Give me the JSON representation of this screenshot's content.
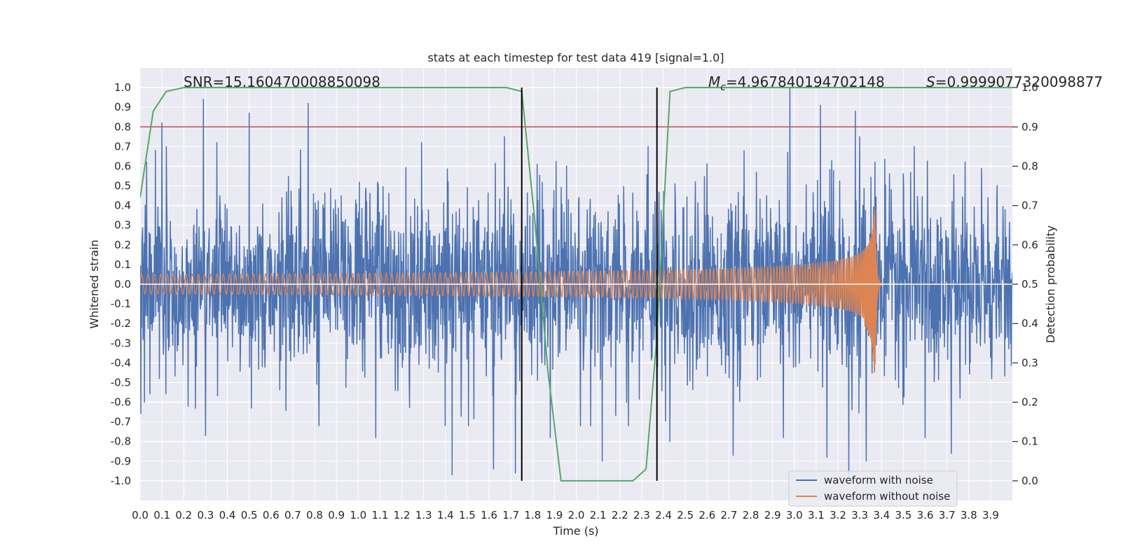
{
  "chart_data": {
    "type": "line",
    "title": "stats at each timestep for test data 419 [signal=1.0]",
    "xlabel": "Time (s)",
    "ylabel": "Whitened strain",
    "y2label": "Detection probability",
    "xlim": [
      0.0,
      4.0
    ],
    "ylim": [
      -1.1,
      1.1
    ],
    "y2lim": [
      -0.05,
      1.05
    ],
    "x_ticks": [
      "0.0",
      "0.1",
      "0.2",
      "0.3",
      "0.4",
      "0.5",
      "0.6",
      "0.7",
      "0.8",
      "0.9",
      "1.0",
      "1.1",
      "1.2",
      "1.3",
      "1.4",
      "1.5",
      "1.6",
      "1.7",
      "1.8",
      "1.9",
      "2.0",
      "2.1",
      "2.2",
      "2.3",
      "2.4",
      "2.5",
      "2.6",
      "2.7",
      "2.8",
      "2.9",
      "3.0",
      "3.1",
      "3.2",
      "3.3",
      "3.4",
      "3.5",
      "3.6",
      "3.7",
      "3.8",
      "3.9"
    ],
    "y_ticks": [
      "1.0",
      "0.9",
      "0.8",
      "0.7",
      "0.6",
      "0.5",
      "0.4",
      "0.3",
      "0.2",
      "0.1",
      "0.0",
      "-0.1",
      "-0.2",
      "-0.3",
      "-0.4",
      "-0.5",
      "-0.6",
      "-0.7",
      "-0.8",
      "-0.9",
      "-1.0"
    ],
    "y2_ticks": [
      "1.0",
      "0.9",
      "0.8",
      "0.7",
      "0.6",
      "0.5",
      "0.4",
      "0.3",
      "0.2",
      "0.1",
      "0.0"
    ],
    "grid": true,
    "legend_position": "lower-right",
    "annotations": {
      "snr": "SNR=15.160470008850098",
      "mc_symbol": "M",
      "mc_sub": "c",
      "mc_value": "=4.967840194702148",
      "s_symbol": "S",
      "s_value": "=0.9999077320098877"
    },
    "threshold": {
      "axis": "right",
      "y": 0.9,
      "color": "#c44e52"
    },
    "vlines": [
      1.75,
      2.37
    ],
    "noisy_envelope": {
      "name": "waveform with noise",
      "color": "#4c72b0",
      "typical_amplitude": 0.45,
      "upper_spikes": [
        [
          0.03,
          0.62
        ],
        [
          0.07,
          0.68
        ],
        [
          0.1,
          0.82
        ],
        [
          0.12,
          0.7
        ],
        [
          0.29,
          0.94
        ],
        [
          0.5,
          0.87
        ],
        [
          0.77,
          0.92
        ],
        [
          1.29,
          0.72
        ],
        [
          1.67,
          0.75
        ],
        [
          1.72,
          0.7
        ],
        [
          1.82,
          0.61
        ],
        [
          2.33,
          0.7
        ],
        [
          2.97,
          0.67
        ],
        [
          2.98,
          1.0
        ],
        [
          3.12,
          0.91
        ],
        [
          3.15,
          0.8
        ],
        [
          3.28,
          0.88
        ],
        [
          3.3,
          0.75
        ],
        [
          3.37,
          0.62
        ],
        [
          3.55,
          0.7
        ]
      ],
      "lower_spikes": [
        [
          0.02,
          -0.6
        ],
        [
          0.22,
          -0.62
        ],
        [
          0.3,
          -0.77
        ],
        [
          0.51,
          -0.63
        ],
        [
          0.82,
          -0.72
        ],
        [
          1.08,
          -0.78
        ],
        [
          1.43,
          -0.97
        ],
        [
          1.62,
          -0.94
        ],
        [
          1.72,
          -0.96
        ],
        [
          1.88,
          -0.78
        ],
        [
          2.12,
          -0.9
        ],
        [
          2.24,
          -0.72
        ],
        [
          2.43,
          -0.8
        ],
        [
          2.72,
          -0.87
        ],
        [
          2.95,
          -0.78
        ],
        [
          3.15,
          -0.88
        ],
        [
          3.25,
          -0.97
        ],
        [
          3.33,
          -0.9
        ],
        [
          3.6,
          -0.78
        ],
        [
          3.72,
          -0.86
        ]
      ]
    },
    "clean_waveform": {
      "name": "waveform without noise",
      "color": "#dd8452",
      "start_amplitude": 0.05,
      "peak_amplitude_pos": 0.4,
      "peak_amplitude_neg": -0.48,
      "merger_time": 3.37,
      "ringdown_end": 3.395,
      "start_frequency_hz": 34
    },
    "detection_probability": {
      "name": "detection probability",
      "color": "#55a868",
      "x": [
        0.0,
        0.06,
        0.12,
        0.2,
        0.5,
        1.0,
        1.5,
        1.68,
        1.75,
        1.81,
        1.87,
        1.93,
        2.0,
        2.2,
        2.26,
        2.32,
        2.37,
        2.43,
        2.5,
        3.0,
        3.5,
        4.0
      ],
      "y": [
        0.72,
        0.94,
        0.99,
        1.0,
        1.0,
        1.0,
        1.0,
        1.0,
        0.99,
        0.66,
        0.28,
        0.0,
        0.0,
        0.0,
        0.0,
        0.03,
        0.37,
        0.99,
        1.0,
        1.0,
        1.0,
        1.0
      ]
    },
    "legend": [
      "waveform with noise",
      "waveform without noise"
    ]
  }
}
